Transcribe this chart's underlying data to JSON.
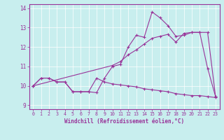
{
  "bg_color": "#c8eeee",
  "grid_color": "#ffffff",
  "line_color": "#993399",
  "xlabel": "Windchill (Refroidissement éolien,°C)",
  "xmin": 0,
  "xmax": 23,
  "ymin": 8.8,
  "ymax": 14.2,
  "yticks": [
    9,
    10,
    11,
    12,
    13,
    14
  ],
  "line1_x": [
    0,
    1,
    2,
    3,
    4,
    5,
    6,
    7,
    8,
    9,
    10,
    11,
    12,
    13,
    14,
    15,
    16,
    17,
    18,
    19,
    20,
    21,
    22,
    23
  ],
  "line1_y": [
    10.0,
    10.4,
    10.4,
    10.2,
    10.2,
    9.7,
    9.7,
    9.7,
    9.65,
    10.4,
    11.0,
    11.1,
    12.0,
    12.6,
    12.5,
    13.8,
    13.5,
    13.1,
    12.55,
    12.6,
    12.75,
    12.75,
    10.9,
    9.45
  ],
  "line2_x": [
    0,
    1,
    2,
    3,
    4,
    5,
    6,
    7,
    8,
    9,
    10,
    11,
    12,
    13,
    14,
    15,
    16,
    17,
    18,
    19,
    20,
    21,
    22,
    23
  ],
  "line2_y": [
    10.0,
    10.4,
    10.4,
    10.2,
    10.2,
    9.7,
    9.7,
    9.7,
    10.4,
    10.2,
    10.1,
    10.05,
    10.0,
    9.95,
    9.85,
    9.8,
    9.75,
    9.7,
    9.6,
    9.55,
    9.5,
    9.5,
    9.45,
    9.4
  ],
  "line3_x": [
    0,
    10,
    11,
    12,
    13,
    14,
    15,
    16,
    17,
    18,
    19,
    20,
    21,
    22,
    23
  ],
  "line3_y": [
    10.0,
    11.05,
    11.25,
    11.6,
    11.85,
    12.15,
    12.45,
    12.55,
    12.65,
    12.25,
    12.7,
    12.75,
    12.75,
    12.75,
    9.45
  ]
}
